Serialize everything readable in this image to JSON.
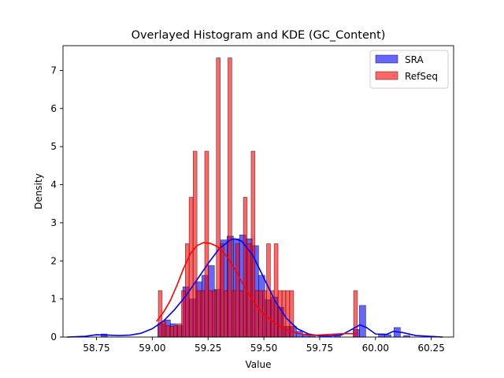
{
  "chart_data": {
    "type": "histogram",
    "title": "Overlayed Histogram and KDE (GC_Content)",
    "xlabel": "Value",
    "ylabel": "Density",
    "xlim": [
      58.6,
      60.35
    ],
    "ylim": [
      0,
      7.65
    ],
    "xticks": [
      58.75,
      59.0,
      59.25,
      59.5,
      59.75,
      60.0,
      60.25
    ],
    "xtick_labels": [
      "58.75",
      "59.00",
      "59.25",
      "59.50",
      "59.75",
      "60.00",
      "60.25"
    ],
    "yticks": [
      0,
      1,
      2,
      3,
      4,
      5,
      6,
      7
    ],
    "ytick_labels": [
      "0",
      "1",
      "2",
      "3",
      "4",
      "5",
      "6",
      "7"
    ],
    "grid": false,
    "legend_position": "top-right",
    "series": [
      {
        "name": "SRA",
        "color": "#0000ff",
        "bar_alpha": 0.6,
        "bin_width": 0.0283,
        "bins": [
          [
            58.77,
            0.08
          ],
          [
            59.025,
            0.35
          ],
          [
            59.053,
            0.45
          ],
          [
            59.081,
            0.35
          ],
          [
            59.109,
            0.3
          ],
          [
            59.137,
            1.32
          ],
          [
            59.166,
            1.0
          ],
          [
            59.194,
            1.45
          ],
          [
            59.222,
            1.62
          ],
          [
            59.25,
            1.88
          ],
          [
            59.278,
            1.25
          ],
          [
            59.307,
            2.55
          ],
          [
            59.335,
            2.65
          ],
          [
            59.363,
            2.58
          ],
          [
            59.391,
            2.68
          ],
          [
            59.42,
            2.58
          ],
          [
            59.448,
            2.4
          ],
          [
            59.476,
            1.62
          ],
          [
            59.504,
            0.98
          ],
          [
            59.533,
            1.05
          ],
          [
            59.561,
            0.78
          ],
          [
            59.589,
            0.28
          ],
          [
            59.617,
            0.28
          ],
          [
            59.645,
            0.15
          ],
          [
            59.674,
            0.08
          ],
          [
            59.702,
            0.06
          ],
          [
            59.815,
            0.04
          ],
          [
            59.9,
            0.2
          ],
          [
            59.928,
            0.83
          ],
          [
            60.013,
            0.05
          ],
          [
            60.041,
            0.06
          ],
          [
            60.083,
            0.25
          ],
          [
            60.126,
            0.04
          ]
        ],
        "kde": [
          [
            58.62,
            0.0
          ],
          [
            58.7,
            0.02
          ],
          [
            58.75,
            0.06
          ],
          [
            58.8,
            0.05
          ],
          [
            58.85,
            0.04
          ],
          [
            58.9,
            0.05
          ],
          [
            58.95,
            0.1
          ],
          [
            59.0,
            0.22
          ],
          [
            59.05,
            0.42
          ],
          [
            59.1,
            0.72
          ],
          [
            59.15,
            1.08
          ],
          [
            59.2,
            1.5
          ],
          [
            59.25,
            1.93
          ],
          [
            59.3,
            2.32
          ],
          [
            59.35,
            2.55
          ],
          [
            59.37,
            2.58
          ],
          [
            59.4,
            2.52
          ],
          [
            59.45,
            2.15
          ],
          [
            59.5,
            1.55
          ],
          [
            59.55,
            0.95
          ],
          [
            59.6,
            0.5
          ],
          [
            59.65,
            0.22
          ],
          [
            59.7,
            0.08
          ],
          [
            59.75,
            0.03
          ],
          [
            59.8,
            0.03
          ],
          [
            59.85,
            0.06
          ],
          [
            59.9,
            0.22
          ],
          [
            59.93,
            0.32
          ],
          [
            59.96,
            0.25
          ],
          [
            60.0,
            0.08
          ],
          [
            60.05,
            0.07
          ],
          [
            60.08,
            0.15
          ],
          [
            60.12,
            0.12
          ],
          [
            60.18,
            0.04
          ],
          [
            60.3,
            0.0
          ]
        ]
      },
      {
        "name": "RefSeq",
        "color": "#ff0000",
        "bar_alpha": 0.6,
        "bin_width": 0.0173,
        "bins": [
          [
            59.027,
            1.22
          ],
          [
            59.044,
            0.42
          ],
          [
            59.062,
            0.3
          ],
          [
            59.079,
            0.28
          ],
          [
            59.096,
            0.3
          ],
          [
            59.113,
            0.35
          ],
          [
            59.131,
            1.22
          ],
          [
            59.148,
            2.45
          ],
          [
            59.165,
            3.67
          ],
          [
            59.183,
            4.88
          ],
          [
            59.2,
            1.22
          ],
          [
            59.217,
            1.22
          ],
          [
            59.235,
            4.88
          ],
          [
            59.252,
            1.22
          ],
          [
            59.269,
            1.22
          ],
          [
            59.287,
            7.33
          ],
          [
            59.304,
            2.45
          ],
          [
            59.321,
            1.22
          ],
          [
            59.339,
            7.33
          ],
          [
            59.356,
            1.22
          ],
          [
            59.373,
            2.45
          ],
          [
            59.391,
            1.22
          ],
          [
            59.408,
            3.67
          ],
          [
            59.425,
            2.45
          ],
          [
            59.443,
            4.88
          ],
          [
            59.46,
            1.22
          ],
          [
            59.477,
            1.22
          ],
          [
            59.495,
            1.22
          ],
          [
            59.512,
            2.45
          ],
          [
            59.529,
            1.22
          ],
          [
            59.546,
            2.45
          ],
          [
            59.564,
            1.22
          ],
          [
            59.581,
            1.22
          ],
          [
            59.598,
            1.22
          ],
          [
            59.616,
            1.22
          ],
          [
            59.902,
            1.22
          ]
        ],
        "kde": [
          [
            59.02,
            0.42
          ],
          [
            59.05,
            0.65
          ],
          [
            59.08,
            0.95
          ],
          [
            59.11,
            1.35
          ],
          [
            59.14,
            1.8
          ],
          [
            59.17,
            2.18
          ],
          [
            59.2,
            2.4
          ],
          [
            59.23,
            2.48
          ],
          [
            59.26,
            2.46
          ],
          [
            59.29,
            2.38
          ],
          [
            59.32,
            2.22
          ],
          [
            59.35,
            1.98
          ],
          [
            59.38,
            1.68
          ],
          [
            59.41,
            1.35
          ],
          [
            59.44,
            1.05
          ],
          [
            59.47,
            0.8
          ],
          [
            59.5,
            0.6
          ],
          [
            59.53,
            0.45
          ],
          [
            59.56,
            0.32
          ],
          [
            59.59,
            0.22
          ],
          [
            59.62,
            0.15
          ],
          [
            59.65,
            0.1
          ],
          [
            59.68,
            0.07
          ],
          [
            59.71,
            0.05
          ],
          [
            59.74,
            0.05
          ],
          [
            59.77,
            0.06
          ],
          [
            59.8,
            0.07
          ],
          [
            59.83,
            0.08
          ],
          [
            59.86,
            0.09
          ],
          [
            59.89,
            0.09
          ],
          [
            59.92,
            0.09
          ]
        ]
      }
    ]
  }
}
